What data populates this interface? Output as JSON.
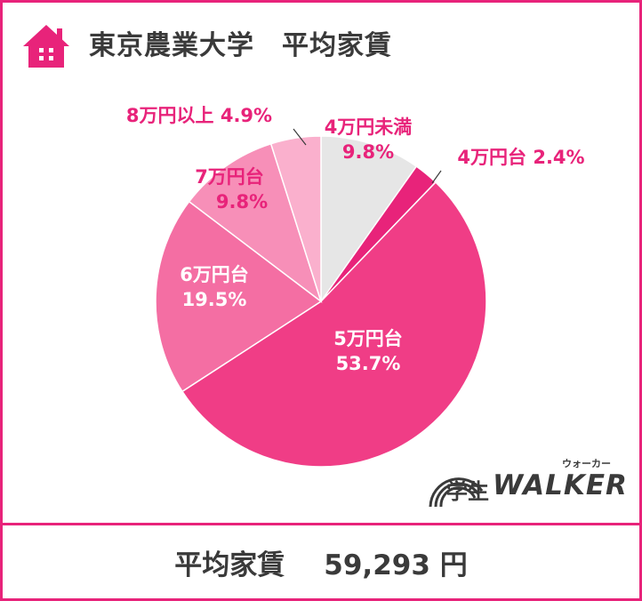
{
  "header": {
    "title": "東京農業大学　平均家賃",
    "icon": "house-icon"
  },
  "footer": {
    "label": "平均家賃",
    "amount": "59,293 円"
  },
  "logo": {
    "kanji": "学生",
    "brand": "WALKER",
    "ruby": "ウォーカー"
  },
  "colors": {
    "accent": "#e8237a",
    "text": "#3a3a3a"
  },
  "chart_data": {
    "type": "pie",
    "title": "東京農業大学　平均家賃",
    "start": "top",
    "direction": "clockwise",
    "slices": [
      {
        "label": "4万円未満",
        "value": 9.8,
        "value_label": "9.8%",
        "color": "#e6e6e6"
      },
      {
        "label": "4万円台",
        "value": 2.4,
        "value_label": "2.4%",
        "color": "#e8237a"
      },
      {
        "label": "5万円台",
        "value": 53.7,
        "value_label": "53.7%",
        "color": "#f03d86"
      },
      {
        "label": "6万円台",
        "value": 19.5,
        "value_label": "19.5%",
        "color": "#f46ea3"
      },
      {
        "label": "7万円台",
        "value": 9.8,
        "value_label": "9.8%",
        "color": "#f78fb8"
      },
      {
        "label": "8万円以上",
        "value": 4.9,
        "value_label": "4.9%",
        "color": "#fab0cd"
      }
    ]
  }
}
